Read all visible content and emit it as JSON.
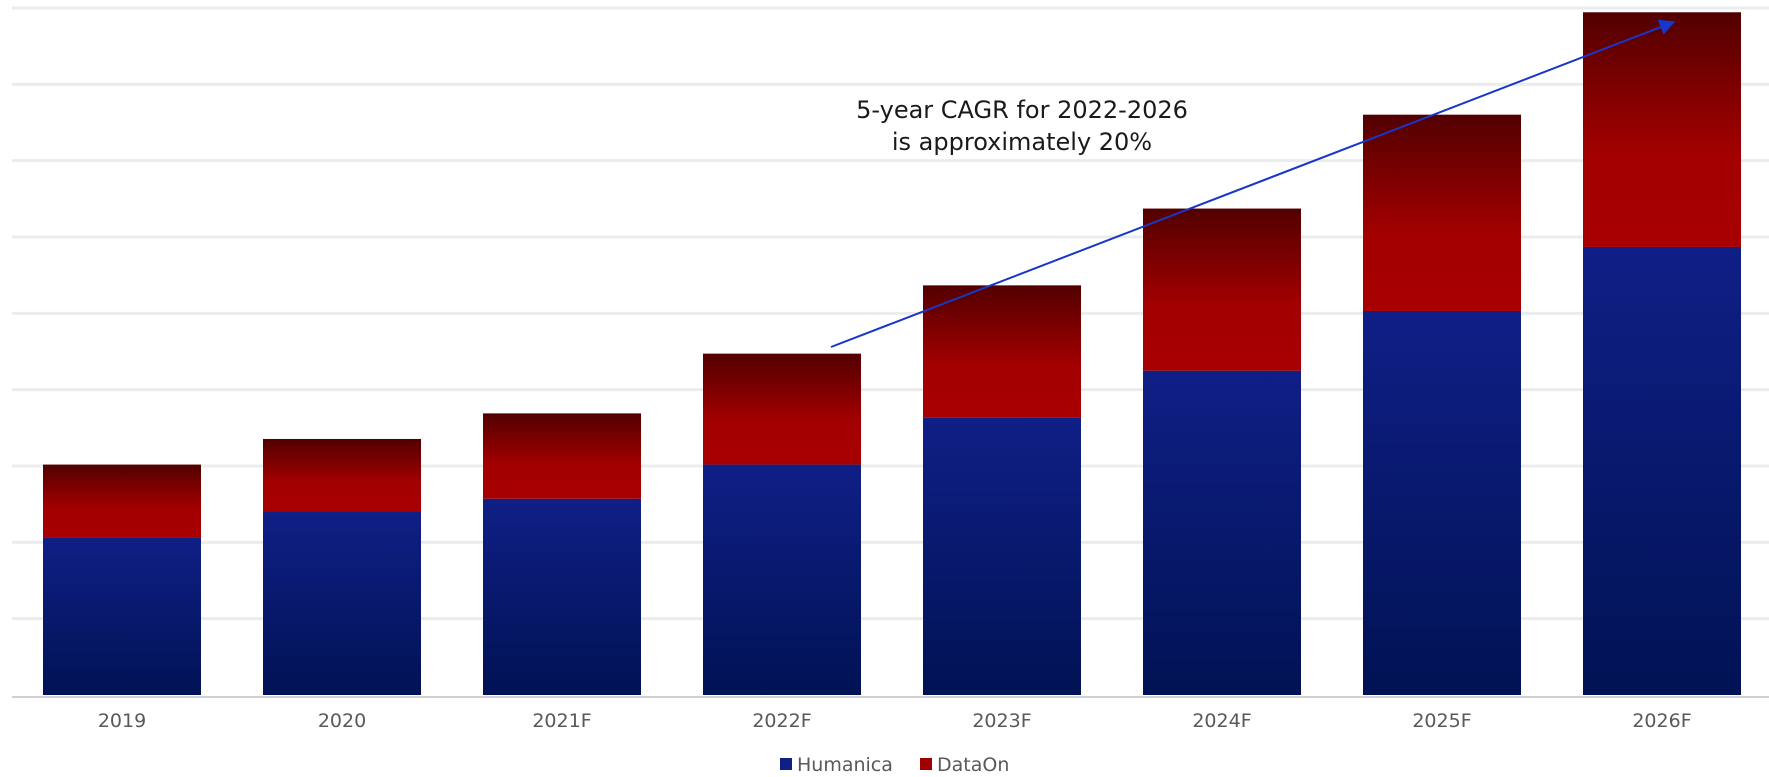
{
  "chart_data": {
    "type": "bar",
    "stacked": true,
    "categories": [
      "2019",
      "2020",
      "2021F",
      "2022F",
      "2023F",
      "2024F",
      "2025F",
      "2026F"
    ],
    "series": [
      {
        "name": "Humanica",
        "color": "#0f1f82",
        "values": [
          37,
          43,
          46,
          54,
          65,
          76,
          90,
          105
        ]
      },
      {
        "name": "DataOn",
        "color": "#a00000",
        "values": [
          17,
          17,
          20,
          26,
          31,
          38,
          46,
          55
        ]
      }
    ],
    "ylim": [
      0,
      161
    ],
    "grid": true,
    "legend": "bottom-center",
    "annotation": {
      "lines": [
        "5-year CAGR for 2022-2026",
        "is approximately 20%"
      ]
    }
  }
}
